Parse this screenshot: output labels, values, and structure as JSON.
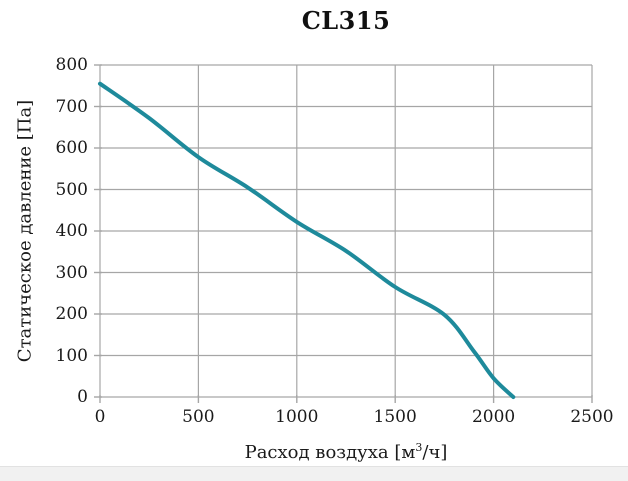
{
  "chart_data": {
    "type": "line",
    "title": "CL315",
    "xlabel": "Расход воздуха [м³/ч]",
    "xlabel_parts": {
      "pre": "Расход воздуха [м",
      "sup": "3",
      "post": "/ч]"
    },
    "ylabel": "Статическое давление [Па]",
    "xlim": [
      0,
      2500
    ],
    "ylim": [
      0,
      800
    ],
    "xticks": [
      0,
      500,
      1000,
      1500,
      2000,
      2500
    ],
    "yticks": [
      0,
      100,
      200,
      300,
      400,
      500,
      600,
      700,
      800
    ],
    "grid": true,
    "legend": false,
    "colors": {
      "line": "#1e8a9b",
      "grid": "#a6a6a6",
      "axis": "#a6a6a6",
      "text": "#1a1a1a"
    },
    "series": [
      {
        "name": "CL315",
        "points": [
          [
            0,
            755
          ],
          [
            250,
            672
          ],
          [
            500,
            578
          ],
          [
            750,
            505
          ],
          [
            1000,
            422
          ],
          [
            1250,
            352
          ],
          [
            1500,
            265
          ],
          [
            1750,
            198
          ],
          [
            1900,
            110
          ],
          [
            2000,
            45
          ],
          [
            2100,
            0
          ]
        ]
      }
    ]
  }
}
